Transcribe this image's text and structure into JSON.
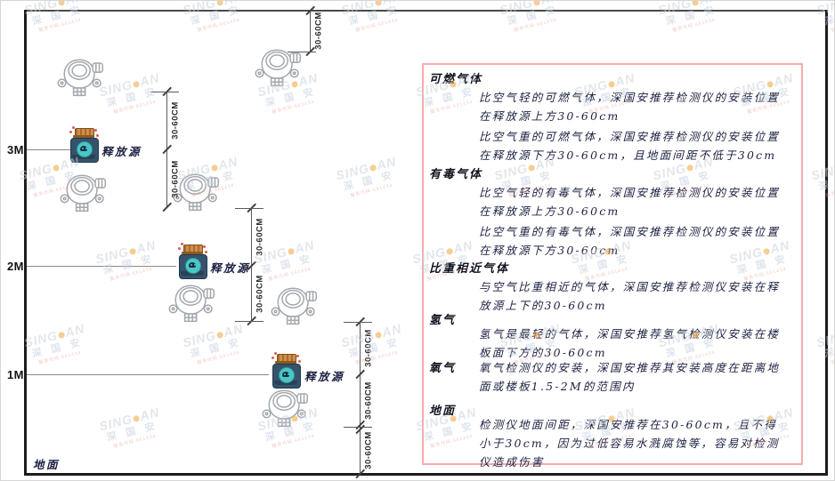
{
  "diagram": {
    "axis_labels": {
      "m3": "3M",
      "m2": "2M",
      "m1": "1M"
    },
    "ground_label": "地面",
    "release_source_label": "释放源",
    "dimension_label": "30-60CM"
  },
  "panel": {
    "sections": [
      {
        "title": "可燃气体",
        "paragraphs": [
          "比空气轻的可燃气体，深国安推荐检测仪的安装位置在释放源上方30-60cm",
          "比空气重的可燃气体，深国安推荐检测仪的安装位置在释放源下方30-60cm，且地面间距不低于30cm"
        ]
      },
      {
        "title": "有毒气体",
        "paragraphs": [
          "比空气轻的有毒气体，深国安推荐检测仪的安装位置在释放源上方30-60cm",
          "比空气重的有毒气体，深国安推荐检测仪的安装位置在释放源下方30-60cm"
        ]
      },
      {
        "title": "比重相近气体",
        "paragraphs": [
          "与空气比重相近的气体，深国安推荐检测仪安装在释放源上下的30-60cm"
        ]
      },
      {
        "title": "氢气",
        "paragraphs": [
          "氢气是最轻的气体，深国安推荐氢气检测仪安装在楼板面下方的30-60cm"
        ]
      },
      {
        "title": "氧气",
        "paragraphs": [
          "氧气检测仪的安装，深国安推荐其安装高度在距离地面或楼板1.5-2M的范围内"
        ]
      },
      {
        "title": "地面",
        "paragraphs": [
          "检测仪地面间距，深国安推荐在30-60cm，且不得小于30cm，因为过低容易水溅腐蚀等，容易对检测仪造成伤害"
        ]
      }
    ]
  },
  "watermark": {
    "brand_left": "SING",
    "brand_right": "AN",
    "cn": "深 国 安",
    "sub": "服务代码:661434"
  },
  "colors": {
    "panel_border": "#f6abab",
    "watermark_dot": "#f2a63c",
    "source_body": "#35536b",
    "source_cap": "#a96c2c",
    "source_screen": "#4cc6c8"
  }
}
